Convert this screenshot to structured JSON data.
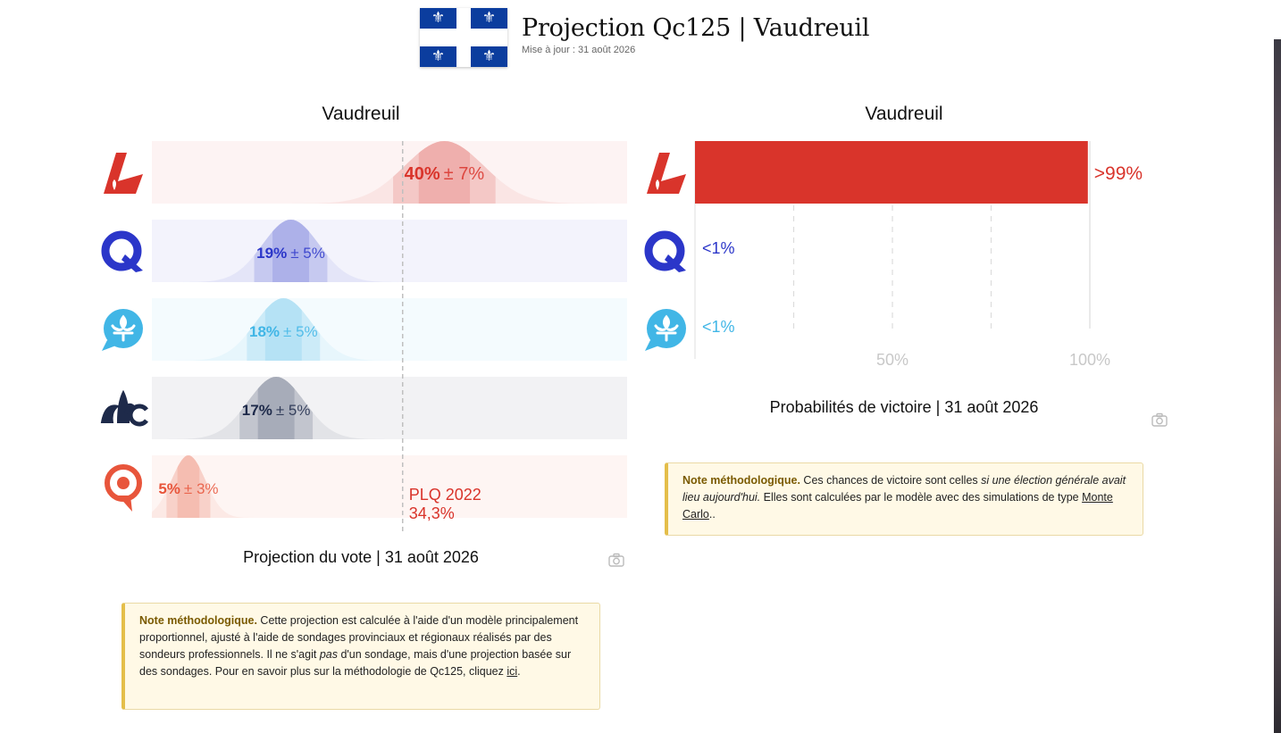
{
  "header": {
    "title": "Projection Qc125 | Vaudreuil",
    "updated": "Mise à jour : 31 août 2026",
    "flag_glyph": "⚜",
    "flag_color": "#0b3d9e"
  },
  "vote_panel": {
    "title": "Vaudreuil",
    "caption": "Projection du vote | 31 août 2026",
    "reference_label_line1": "PLQ 2022",
    "reference_label_line2": "34,3%",
    "reference_value": 34.3
  },
  "prob_panel": {
    "title": "Vaudreuil",
    "caption": "Probabilités de victoire | 31 août 2026",
    "axis_ticks": [
      "50%",
      "100%"
    ]
  },
  "chart_data": [
    {
      "type": "bar",
      "title": "Projection du vote | 31 août 2026",
      "categories": [
        "PLQ",
        "PQ",
        "CAQ",
        "PCQ",
        "QS"
      ],
      "values": [
        40,
        19,
        18,
        17,
        5
      ],
      "margins": [
        7,
        5,
        5,
        5,
        3
      ],
      "labels_value": [
        "40%",
        "19%",
        "18%",
        "17%",
        "5%"
      ],
      "labels_margin": [
        "± 7%",
        "± 5%",
        "± 5%",
        "± 5%",
        "± 3%"
      ],
      "colors": [
        "#d9342b",
        "#2b36c9",
        "#41b6e6",
        "#1e2a4a",
        "#e8553b"
      ],
      "xlim": [
        0,
        65
      ],
      "reference_line": 34.3
    },
    {
      "type": "bar",
      "title": "Probabilités de victoire | 31 août 2026",
      "categories": [
        "PLQ",
        "PQ",
        "CAQ"
      ],
      "values": [
        99.5,
        0.5,
        0.5
      ],
      "labels": [
        ">99%",
        "<1%",
        "<1%"
      ],
      "colors": [
        "#d9342b",
        "#2b36c9",
        "#41b6e6"
      ],
      "xlim": [
        0,
        100
      ],
      "ticks": [
        50,
        100
      ],
      "gridlines": [
        25,
        50,
        75,
        100
      ]
    }
  ],
  "vote_note": {
    "lead": "Note méthodologique.",
    "text1": "Cette projection est calculée à l'aide d'un modèle principalement proportionnel, ajusté à l'aide de sondages provinciaux et régionaux réalisés par des sondeurs professionnels. Il ne s'agit ",
    "emph": "pas",
    "text2": " d'un sondage, mais d'une projection basée sur des sondages. Pour en savoir plus sur la méthodologie de Qc125, cliquez ",
    "link": "ici",
    "end": "."
  },
  "prob_note": {
    "lead": "Note méthodologique.",
    "text1": " Ces chances de victoire sont celles ",
    "emph": "si une élection générale avait lieu aujourd'hui.",
    "text2": " Elles sont calculées par le modèle avec des simulations de type ",
    "link": "Monte Carlo",
    "end": ".."
  }
}
